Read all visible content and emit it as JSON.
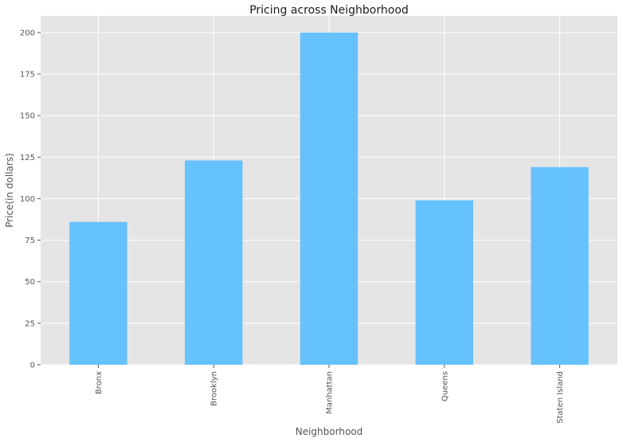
{
  "chart_data": {
    "type": "bar",
    "title": "Pricing across Neighborhood",
    "xlabel": "Neighborhood",
    "ylabel": "Price(in dollars)",
    "categories": [
      "Bronx",
      "Brooklyn",
      "Manhattan",
      "Queens",
      "Staten Island"
    ],
    "values": [
      86,
      123,
      200,
      99,
      119
    ],
    "ylim": [
      0,
      210
    ],
    "yticks": [
      0,
      25,
      50,
      75,
      100,
      125,
      150,
      175,
      200
    ],
    "grid": true,
    "colors": {
      "bar": "#66c1ff",
      "plot_background": "#e5e5e5",
      "grid": "#ffffff",
      "tick_mark": "#555555"
    }
  }
}
